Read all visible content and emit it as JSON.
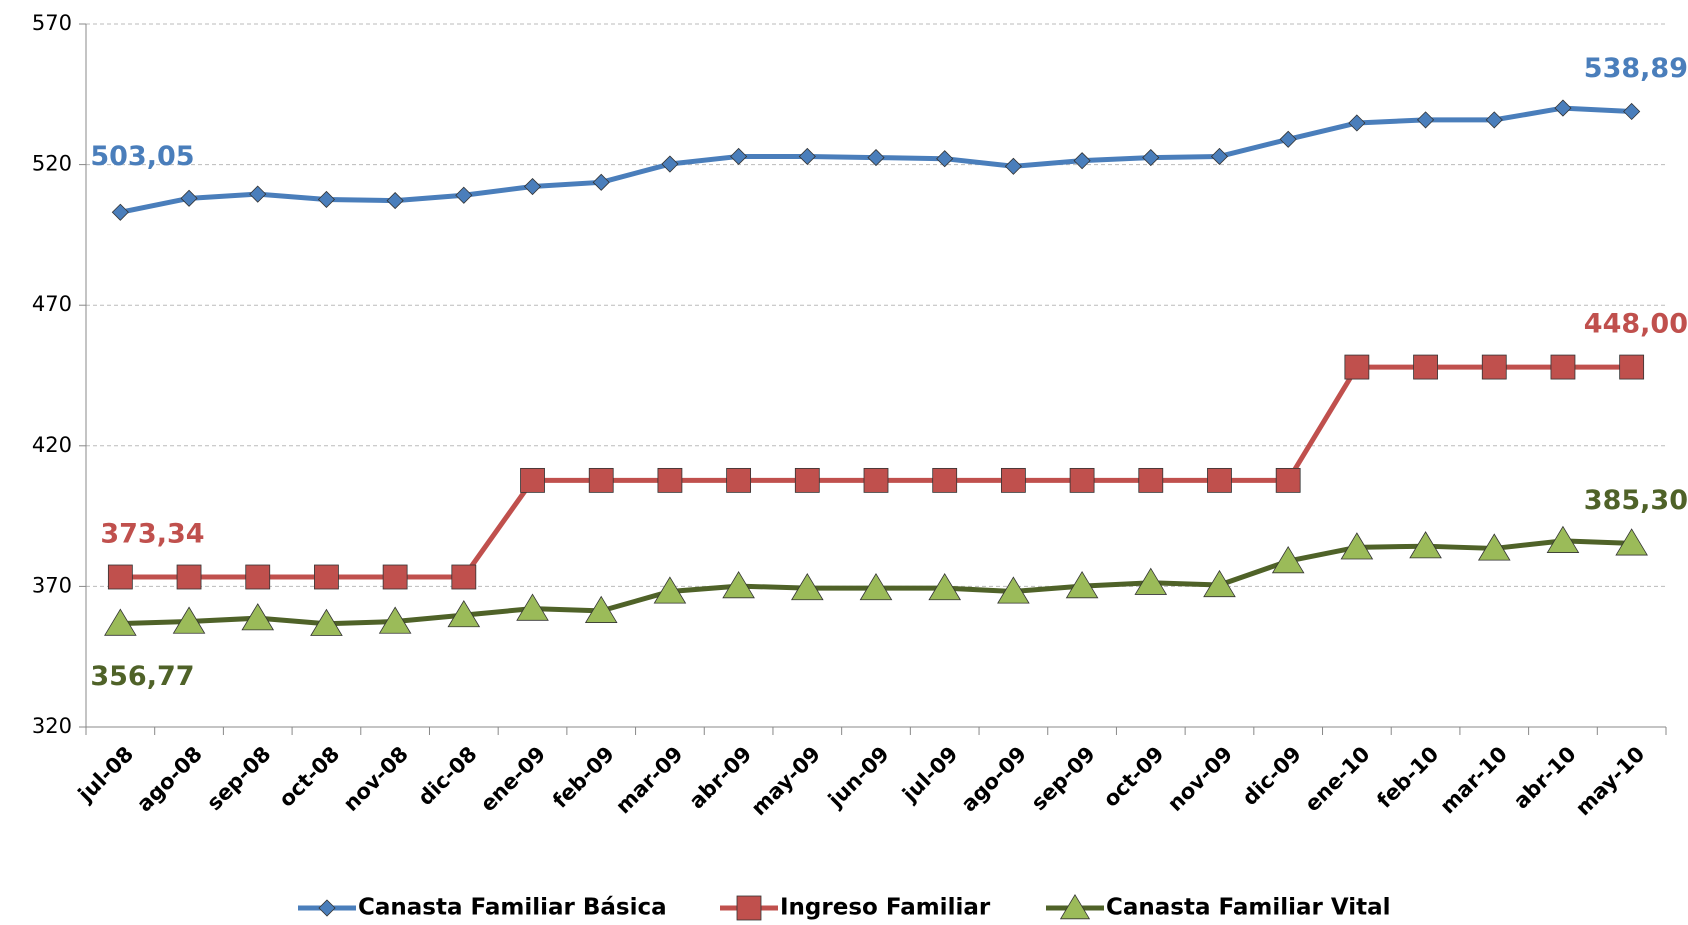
{
  "chart_data": {
    "type": "line",
    "categories": [
      "jul-08",
      "ago-08",
      "sep-08",
      "oct-08",
      "nov-08",
      "dic-08",
      "ene-09",
      "feb-09",
      "mar-09",
      "abr-09",
      "may-09",
      "jun-09",
      "jul-09",
      "ago-09",
      "sep-09",
      "oct-09",
      "nov-09",
      "dic-09",
      "ene-10",
      "feb-10",
      "mar-10",
      "abr-10",
      "may-10"
    ],
    "series": [
      {
        "name": "Canasta Familiar Básica",
        "color": "#4a7ebb",
        "marker": "diamond",
        "values": [
          503.05,
          508,
          509.5,
          507.6,
          507.2,
          509.1,
          512.2,
          513.7,
          520.2,
          522.9,
          522.9,
          522.5,
          522.1,
          519.4,
          521.4,
          522.5,
          522.9,
          529.0,
          534.8,
          535.9,
          535.9,
          540.1,
          538.89
        ],
        "value_labels": [
          "503,05",
          null,
          null,
          null,
          null,
          null,
          null,
          null,
          null,
          null,
          null,
          null,
          null,
          null,
          null,
          null,
          null,
          null,
          null,
          null,
          null,
          null,
          "538,89"
        ]
      },
      {
        "name": "Ingreso Familiar",
        "color": "#c0504d",
        "marker": "square",
        "values": [
          373.34,
          373.34,
          373.34,
          373.34,
          373.34,
          373.34,
          407.7,
          407.7,
          407.7,
          407.7,
          407.7,
          407.7,
          407.7,
          407.7,
          407.7,
          407.7,
          407.7,
          407.7,
          448.0,
          448.0,
          448.0,
          448.0,
          448.0
        ],
        "value_labels": [
          "373,34",
          null,
          null,
          null,
          null,
          null,
          null,
          null,
          null,
          null,
          null,
          null,
          null,
          null,
          null,
          null,
          null,
          null,
          null,
          null,
          null,
          null,
          "448,00"
        ]
      },
      {
        "name": "Canasta Familiar Vital",
        "color": "#4f6228",
        "marker": "triangle",
        "marker_color": "#9bbb59",
        "values": [
          356.77,
          357.5,
          358.7,
          356.7,
          357.5,
          359.8,
          362.1,
          361.3,
          368.2,
          370.1,
          369.4,
          369.4,
          369.4,
          368.2,
          370.1,
          371.3,
          370.5,
          379.0,
          383.9,
          384.3,
          383.5,
          386.2,
          385.3
        ],
        "value_labels": [
          "356,77",
          null,
          null,
          null,
          null,
          null,
          null,
          null,
          null,
          null,
          null,
          null,
          null,
          null,
          null,
          null,
          null,
          null,
          null,
          null,
          null,
          null,
          "385,30"
        ]
      }
    ],
    "ylim": [
      320,
      570
    ],
    "yticks": [
      320,
      370,
      420,
      470,
      520,
      570
    ],
    "grid": true,
    "legend": "bottom"
  }
}
